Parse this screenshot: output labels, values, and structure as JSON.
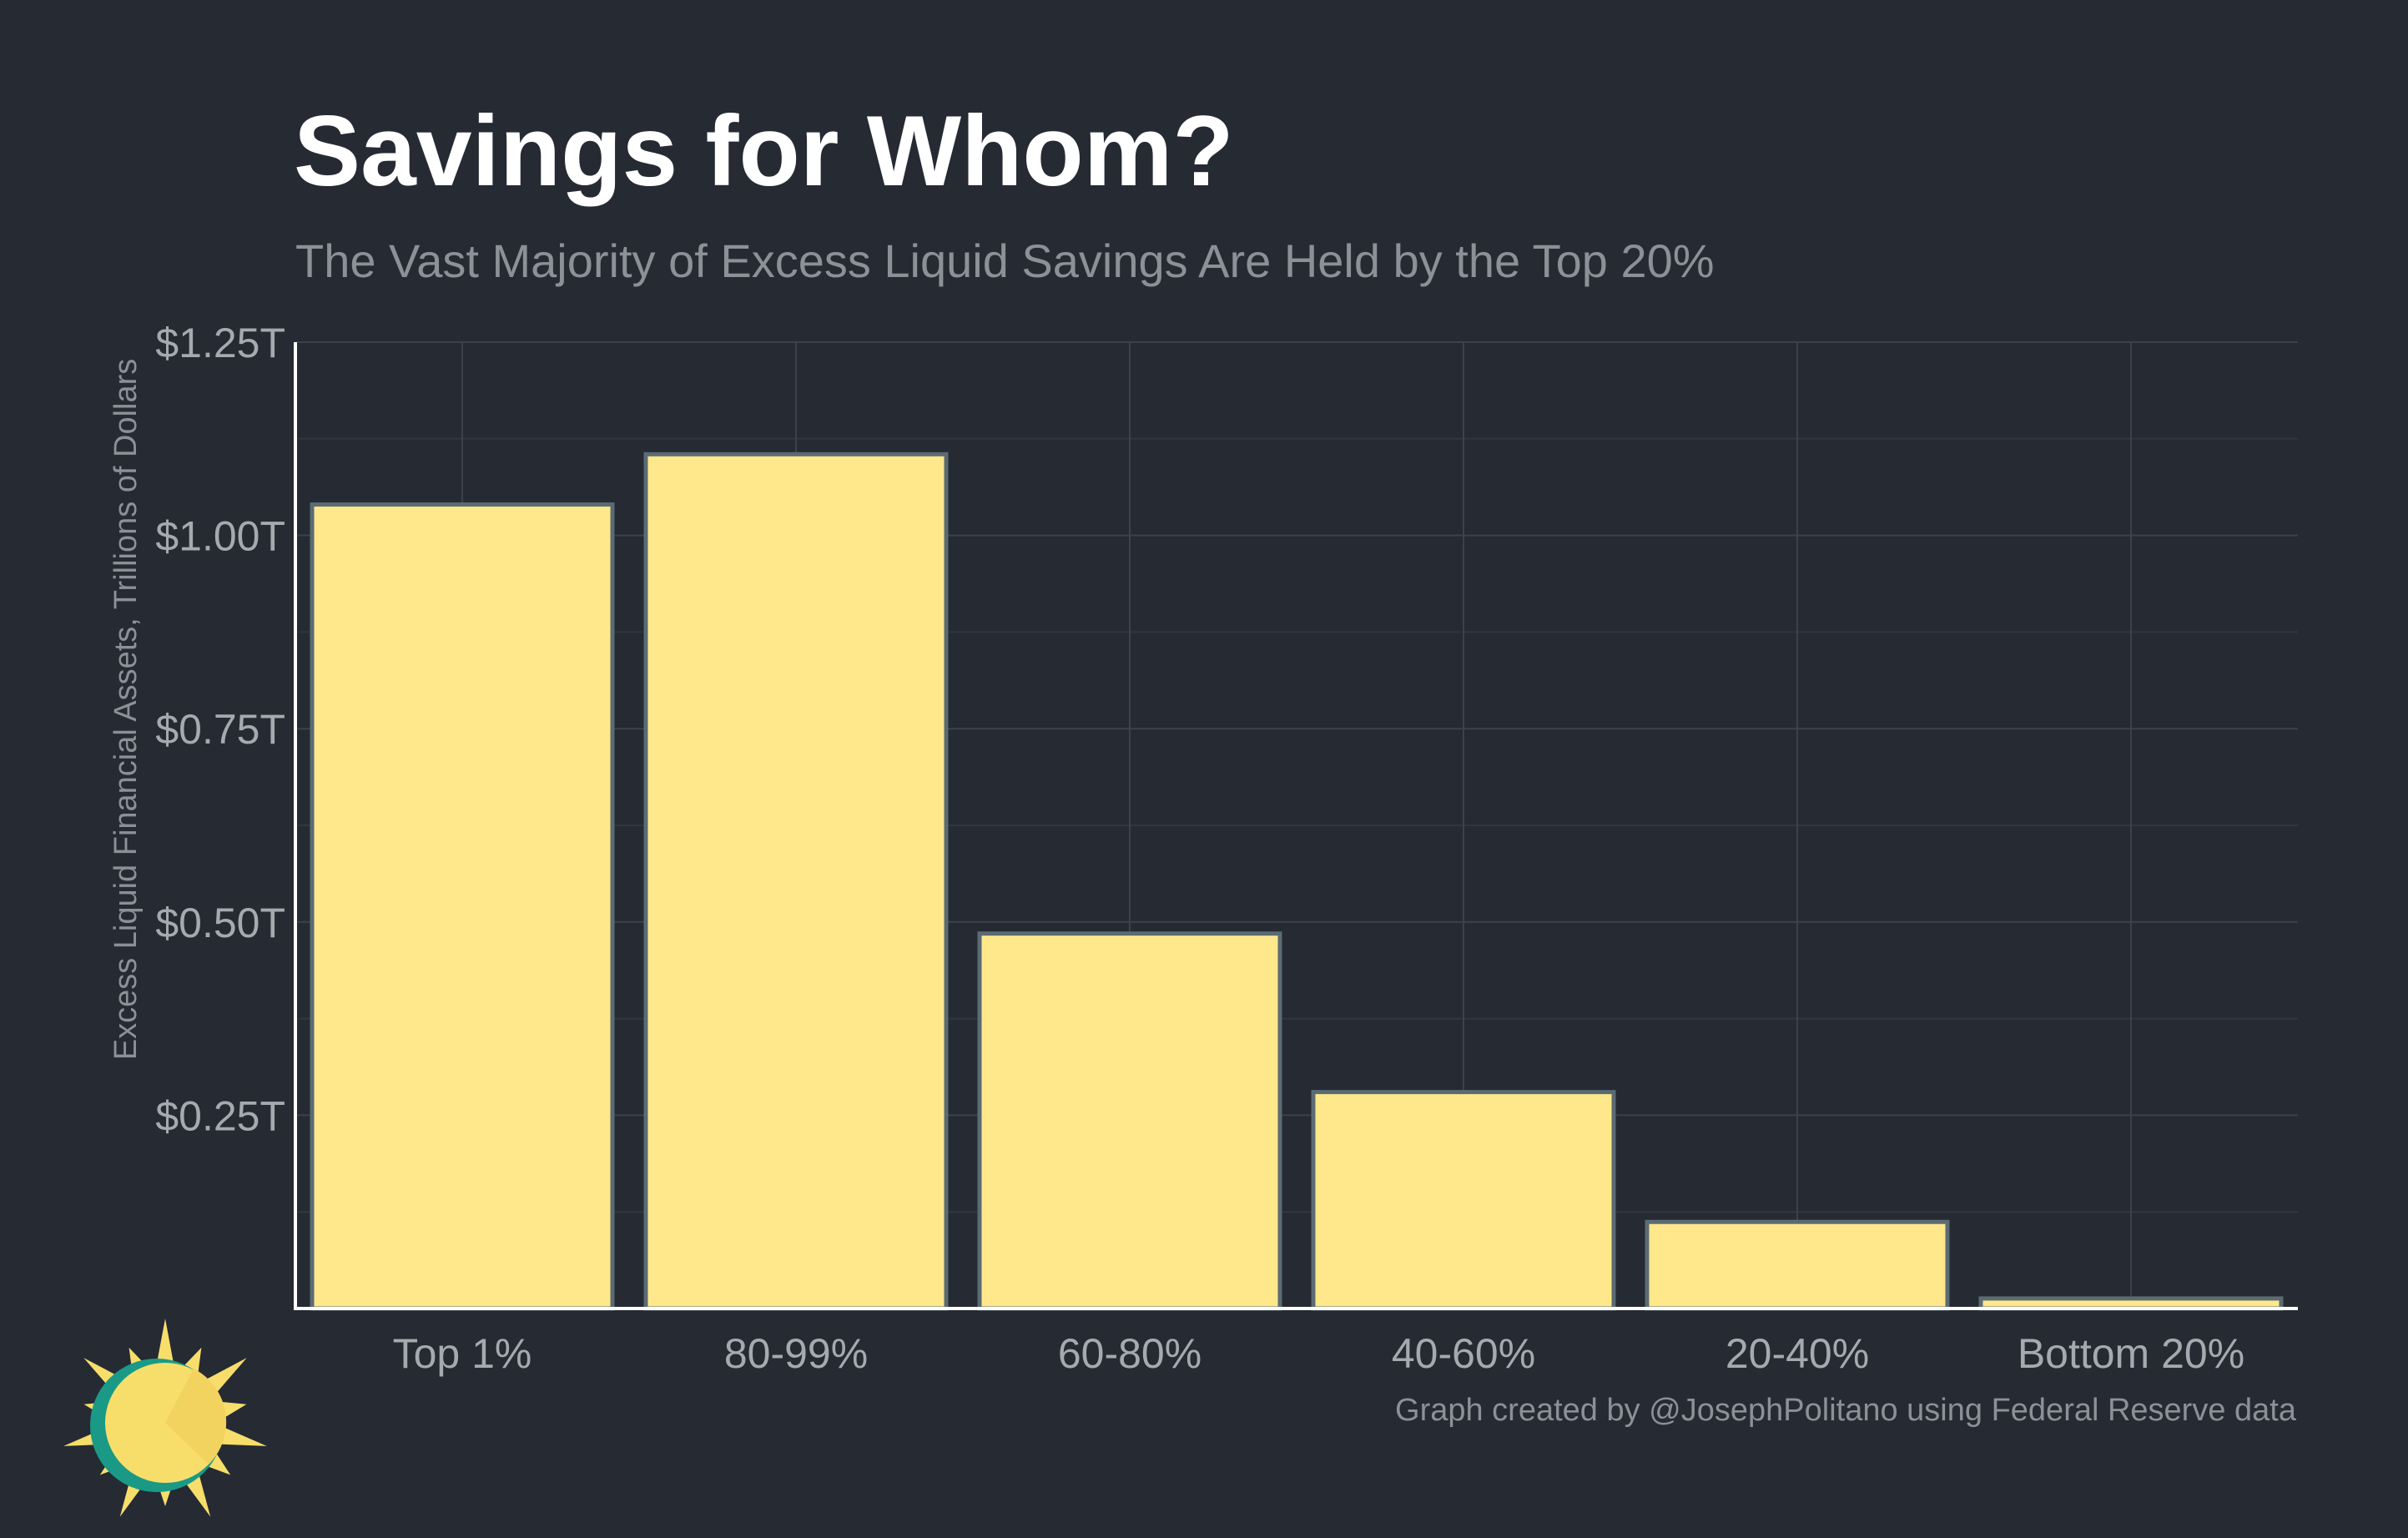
{
  "chart_data": {
    "type": "bar",
    "title": "Savings for Whom?",
    "subtitle": "The Vast Majority of Excess Liquid Savings Are Held by the Top 20%",
    "ylabel": "Excess Liquid Financial Assets, Trillions of Dollars",
    "xlabel": "",
    "categories": [
      "Top 1%",
      "80-99%",
      "60-80%",
      "40-60%",
      "20-40%",
      "Bottom 20%"
    ],
    "values": [
      1.04,
      1.105,
      0.485,
      0.28,
      0.112,
      0.013
    ],
    "ylim": [
      0,
      1.25
    ],
    "yticks": [
      {
        "value": 0.25,
        "label": "$0.25T"
      },
      {
        "value": 0.5,
        "label": "$0.50T"
      },
      {
        "value": 0.75,
        "label": "$0.75T"
      },
      {
        "value": 1.0,
        "label": "$1.00T"
      },
      {
        "value": 1.25,
        "label": "$1.25T"
      }
    ],
    "grid": true,
    "legend": "none",
    "credit": "Graph created by @JosephPolitano using Federal Reserve data",
    "colors": {
      "background": "#252a33",
      "bar_fill": "#ffe88c",
      "bar_stroke": "#5b6b73",
      "logo_ring": "#1a9a86",
      "logo_sun": "#f7de6b"
    }
  }
}
